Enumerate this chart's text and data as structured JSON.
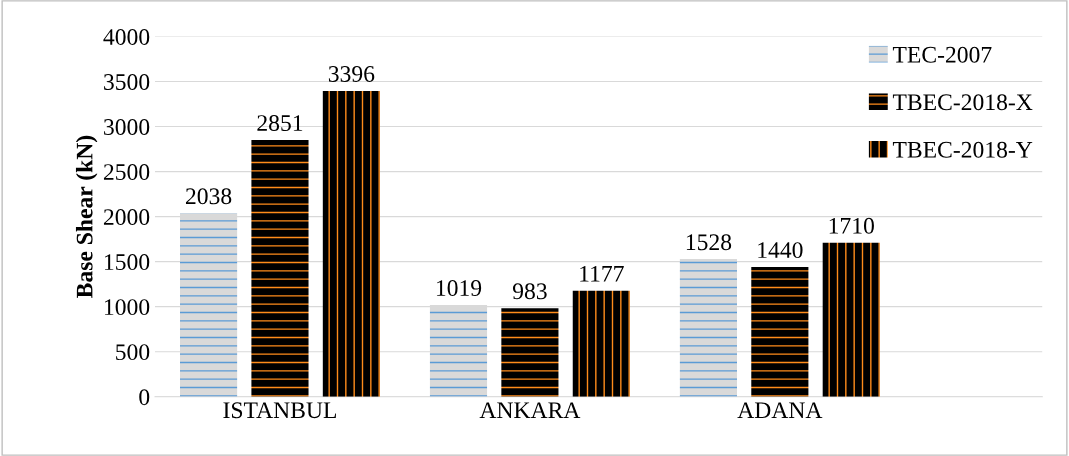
{
  "chart_data": {
    "type": "bar",
    "ylabel": "Base Shear (kN)",
    "categories": [
      "ISTANBUL",
      "ANKARA",
      "ADANA"
    ],
    "series": [
      {
        "name": "TEC-2007",
        "color": "#d9d9d9",
        "values": [
          2038,
          1019,
          1528
        ]
      },
      {
        "name": "TBEC-2018-X",
        "color": "#000000",
        "values": [
          2851,
          983,
          1440
        ]
      },
      {
        "name": "TBEC-2018-Y",
        "color": "#000000",
        "values": [
          3396,
          1177,
          1710
        ]
      }
    ],
    "ylim": [
      0,
      4000
    ],
    "yticks": [
      0,
      500,
      1000,
      1500,
      2000,
      2500,
      3000,
      3500,
      4000
    ],
    "grid": "y",
    "legend": "right",
    "data_labels": true
  }
}
